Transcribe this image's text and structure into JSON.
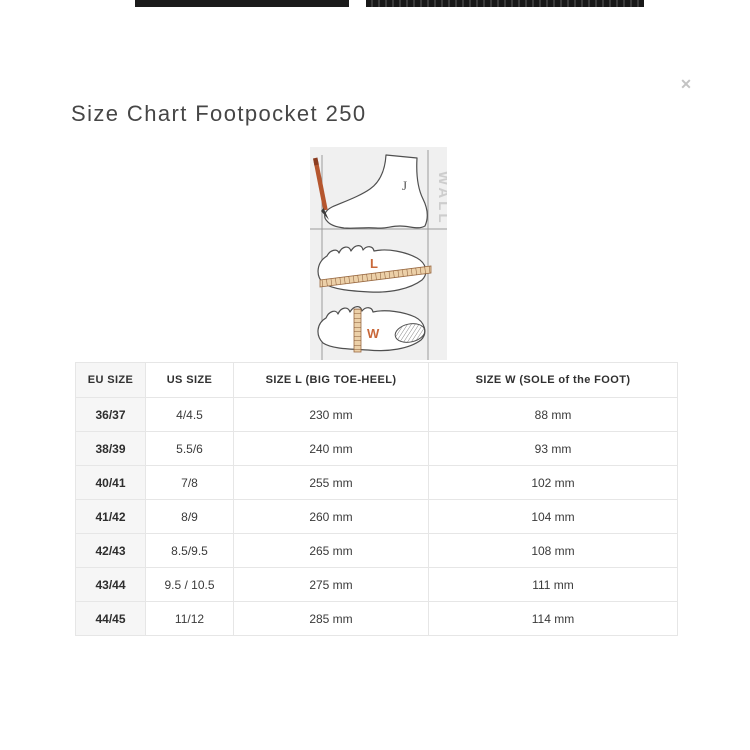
{
  "modal": {
    "title": "Size Chart Footpocket 250",
    "close_label": "✕"
  },
  "diagram": {
    "wall_label": "WALL",
    "length_label": "L",
    "width_label": "W",
    "ankle_label": "J",
    "colors": {
      "box_bg": "#f0f0f0",
      "line_gray": "#9b9b9b",
      "wall_text": "#cdcdcd",
      "accent_orange": "#c9683a",
      "pencil": "#b5562e",
      "ruler": "#ecd0a8"
    }
  },
  "table": {
    "headers": [
      "EU SIZE",
      "US SIZE",
      "SIZE L (BIG TOE-HEEL)",
      "SIZE W (SOLE of the FOOT)"
    ],
    "rows": [
      [
        "36/37",
        "4/4.5",
        "230 mm",
        "88 mm"
      ],
      [
        "38/39",
        "5.5/6",
        "240 mm",
        "93 mm"
      ],
      [
        "40/41",
        "7/8",
        "255 mm",
        "102 mm"
      ],
      [
        "41/42",
        "8/9",
        "260 mm",
        "104 mm"
      ],
      [
        "42/43",
        "8.5/9.5",
        "265 mm",
        "108 mm"
      ],
      [
        "43/44",
        "9.5 / 10.5",
        "275 mm",
        "111 mm"
      ],
      [
        "44/45",
        "11/12",
        "285 mm",
        "114 mm"
      ]
    ]
  }
}
